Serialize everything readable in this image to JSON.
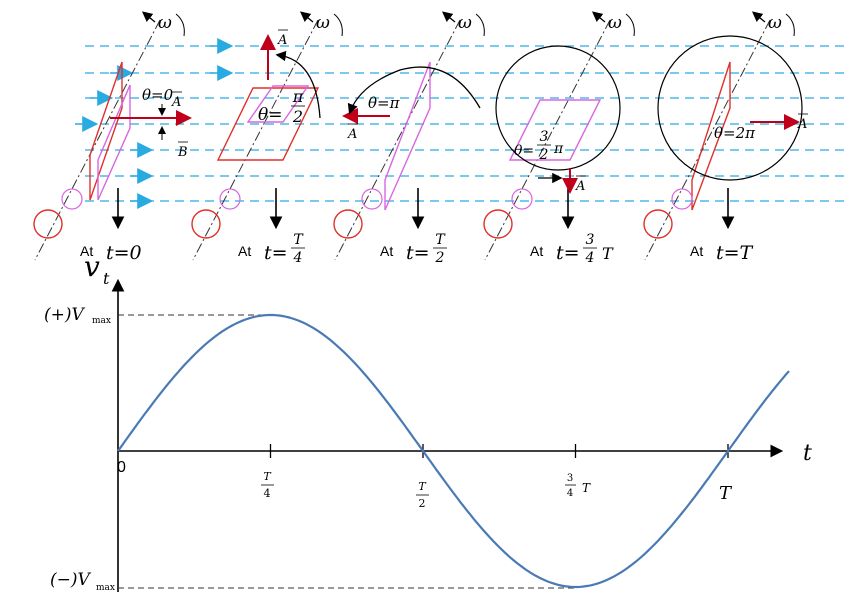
{
  "rotation_symbol": "ω",
  "vector_A": "A",
  "vector_B": "B",
  "time_prefix": "At",
  "stages": [
    {
      "theta_label": "θ=0",
      "time_label": "t=0"
    },
    {
      "theta_label": "θ=",
      "theta_num": "π",
      "theta_den": "2",
      "time_label": "t=",
      "time_num": "T",
      "time_den": "4"
    },
    {
      "theta_label": "θ=π",
      "time_label": "t=",
      "time_num": "T",
      "time_den": "2"
    },
    {
      "theta_label": "θ=",
      "theta_num": "3",
      "theta_den": "2",
      "theta_suffix": "π",
      "time_label": "t=",
      "time_num": "3",
      "time_den": "4",
      "time_suffix": "T"
    },
    {
      "theta_label": "θ=2π",
      "time_label": "t=T"
    }
  ],
  "graph": {
    "y_axis_label": "v",
    "y_axis_sub": "t",
    "x_axis_label": "t",
    "origin_label": "0",
    "vmax_pos_label": "(+)V",
    "vmax_neg_label": "(−)V",
    "vmax_sub": "max",
    "x_ticks": [
      {
        "num": "T",
        "den": "4"
      },
      {
        "num": "T",
        "den": "2"
      },
      {
        "num": "3",
        "den": "4",
        "suffix": "T"
      },
      {
        "label": "T"
      }
    ]
  },
  "colors": {
    "field_lines": "#29abe2",
    "coil": "#e0302a",
    "coil_ghost": "#d966e0",
    "waveform": "#4a7ab5",
    "vector": "#c0001a"
  },
  "chart_data": {
    "type": "line",
    "x_ticks": [
      "0",
      "T/4",
      "T/2",
      "3/4 T",
      "T"
    ],
    "y_ticks": [
      "(+)Vmax",
      "(−)Vmax"
    ],
    "series": [
      {
        "x": [
          0,
          0.25,
          0.5,
          0.75,
          1.0
        ],
        "y": [
          0,
          1,
          0,
          -1,
          0
        ]
      }
    ]
  }
}
